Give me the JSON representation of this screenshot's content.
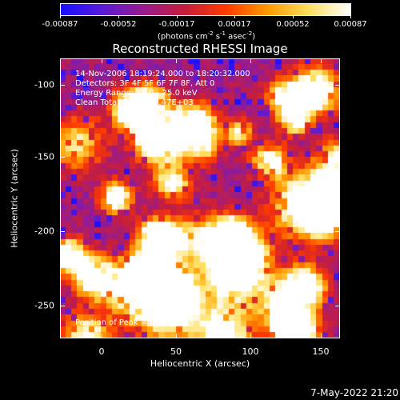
{
  "colorbar": {
    "tick_labels": [
      "-0.00087",
      "-0.00052",
      "-0.00017",
      "0.00017",
      "0.00052",
      "0.00087"
    ],
    "units_prefix": "(photons cm",
    "units_exp1": "-2",
    "units_mid1": " s",
    "units_exp2": "-1",
    "units_mid2": " asec",
    "units_exp3": "-2",
    "units_suffix": ")",
    "colors": [
      "#1a10ff",
      "#5a1bd9",
      "#9a1c8c",
      "#c81e3c",
      "#ff3c00",
      "#ff9a00",
      "#ffe060",
      "#ffffff"
    ]
  },
  "title": "Reconstructed RHESSI Image",
  "info": {
    "time": "14-Nov-2006 18:19:24.000 to 18:20:32.000",
    "detectors": "Detectors: 3F 4F 5F 6F 7F 8F, Att 0",
    "energy": "Energy Range: 12.0 - 25.0 keV",
    "clean": "Clean      Total counts: 2.47E+03"
  },
  "peak": "Position of Peak = [89,-257]",
  "axes": {
    "x_ticks": [
      "0",
      "50",
      "100",
      "150"
    ],
    "y_ticks": [
      "-100",
      "-150",
      "-200",
      "-250"
    ],
    "xlabel": "Heliocentric X (arcsec)",
    "ylabel": "Heliocentric Y (arcsec)"
  },
  "date": "7-May-2022 21:20"
}
